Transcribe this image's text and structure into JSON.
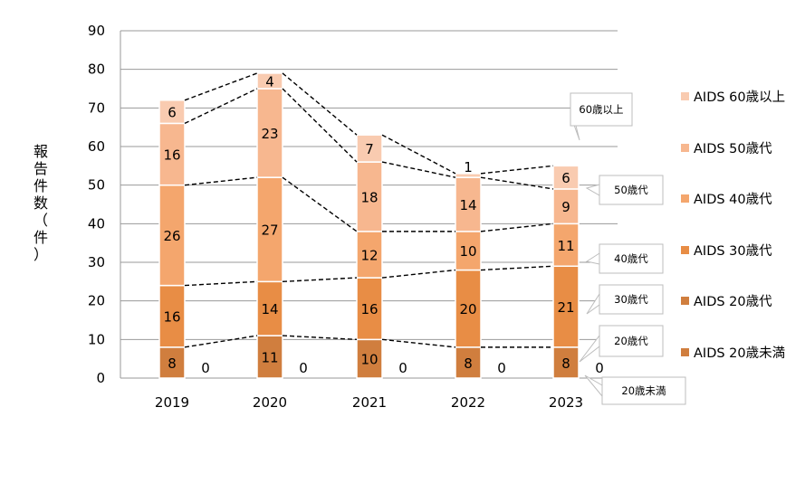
{
  "chart_data": {
    "type": "bar",
    "stacked": true,
    "categories": [
      "2019",
      "2020",
      "2021",
      "2022",
      "2023"
    ],
    "ylabel": "報告件数（件）",
    "ylim": [
      0,
      90
    ],
    "yticks": [
      0,
      10,
      20,
      30,
      40,
      50,
      60,
      70,
      80,
      90
    ],
    "grid": true,
    "legend_position": "right",
    "series": [
      {
        "name": "AIDS 20歳未満",
        "values": [
          0,
          0,
          0,
          0,
          0
        ],
        "color": "#D07E3E"
      },
      {
        "name": "AIDS 20歳代",
        "values": [
          8,
          11,
          10,
          8,
          8
        ],
        "color": "#D07E3E"
      },
      {
        "name": "AIDS 30歳代",
        "values": [
          16,
          14,
          16,
          20,
          21
        ],
        "color": "#E88D45"
      },
      {
        "name": "AIDS 40歳代",
        "values": [
          26,
          27,
          12,
          10,
          11
        ],
        "color": "#F4A66D"
      },
      {
        "name": "AIDS 50歳代",
        "values": [
          16,
          23,
          18,
          14,
          9
        ],
        "color": "#F7B78F"
      },
      {
        "name": "AIDS 60歳以上",
        "values": [
          6,
          4,
          7,
          1,
          6
        ],
        "color": "#F9CBB0"
      }
    ],
    "callouts": [
      "60歳以上",
      "50歳代",
      "40歳代",
      "30歳代",
      "20歳代",
      "20歳未満"
    ]
  }
}
